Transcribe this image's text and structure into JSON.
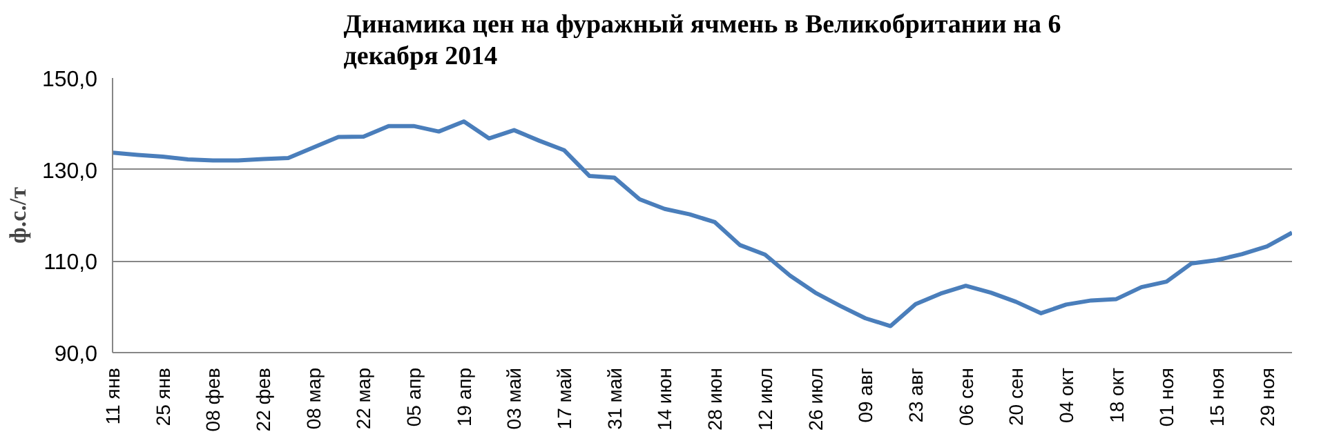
{
  "chart_data": {
    "type": "line",
    "title": "Динамика цен на фуражный ячмень в Великобритании на 6\nдекабря 2014",
    "ylabel": "ф.с./т",
    "categories": [
      "11 янв",
      null,
      "25 янв",
      null,
      "08 фев",
      null,
      "22 фев",
      null,
      "08 мар",
      null,
      "22 мар",
      null,
      "05 апр",
      null,
      "19 апр",
      null,
      "03 май",
      null,
      "17 май",
      null,
      "31 май",
      null,
      "14 июн",
      null,
      "28 июн",
      null,
      "12 июл",
      null,
      "26 июл",
      null,
      "09 авг",
      null,
      "23 авг",
      null,
      "06 сен",
      null,
      "20 сен",
      null,
      "04 окт",
      null,
      "18 окт",
      null,
      "01 ноя",
      null,
      "15 ноя",
      null,
      "29 ноя",
      null
    ],
    "series": [
      {
        "color": "#4a7ebb",
        "values": [
          133.7,
          133.2,
          132.8,
          132.2,
          132.0,
          132.0,
          132.3,
          132.5,
          134.8,
          137.1,
          137.2,
          139.5,
          139.5,
          138.3,
          140.5,
          136.8,
          138.6,
          136.3,
          134.2,
          128.6,
          128.2,
          123.5,
          121.4,
          120.2,
          118.5,
          113.5,
          111.4,
          106.8,
          103.1,
          100.2,
          97.5,
          95.8,
          100.6,
          102.9,
          104.6,
          103.1,
          101.1,
          98.6,
          100.5,
          101.4,
          101.7,
          104.3,
          105.5,
          109.5,
          110.2,
          111.5,
          113.2,
          116.2
        ]
      }
    ],
    "ylim": [
      90,
      150
    ],
    "yticks": [
      {
        "value": 90,
        "label": "90,0"
      },
      {
        "value": 110,
        "label": "110,0"
      },
      {
        "value": 130,
        "label": "130,0"
      },
      {
        "value": 150,
        "label": "150,0"
      }
    ],
    "grid": "y",
    "marker": "none",
    "line_style": "solid"
  }
}
